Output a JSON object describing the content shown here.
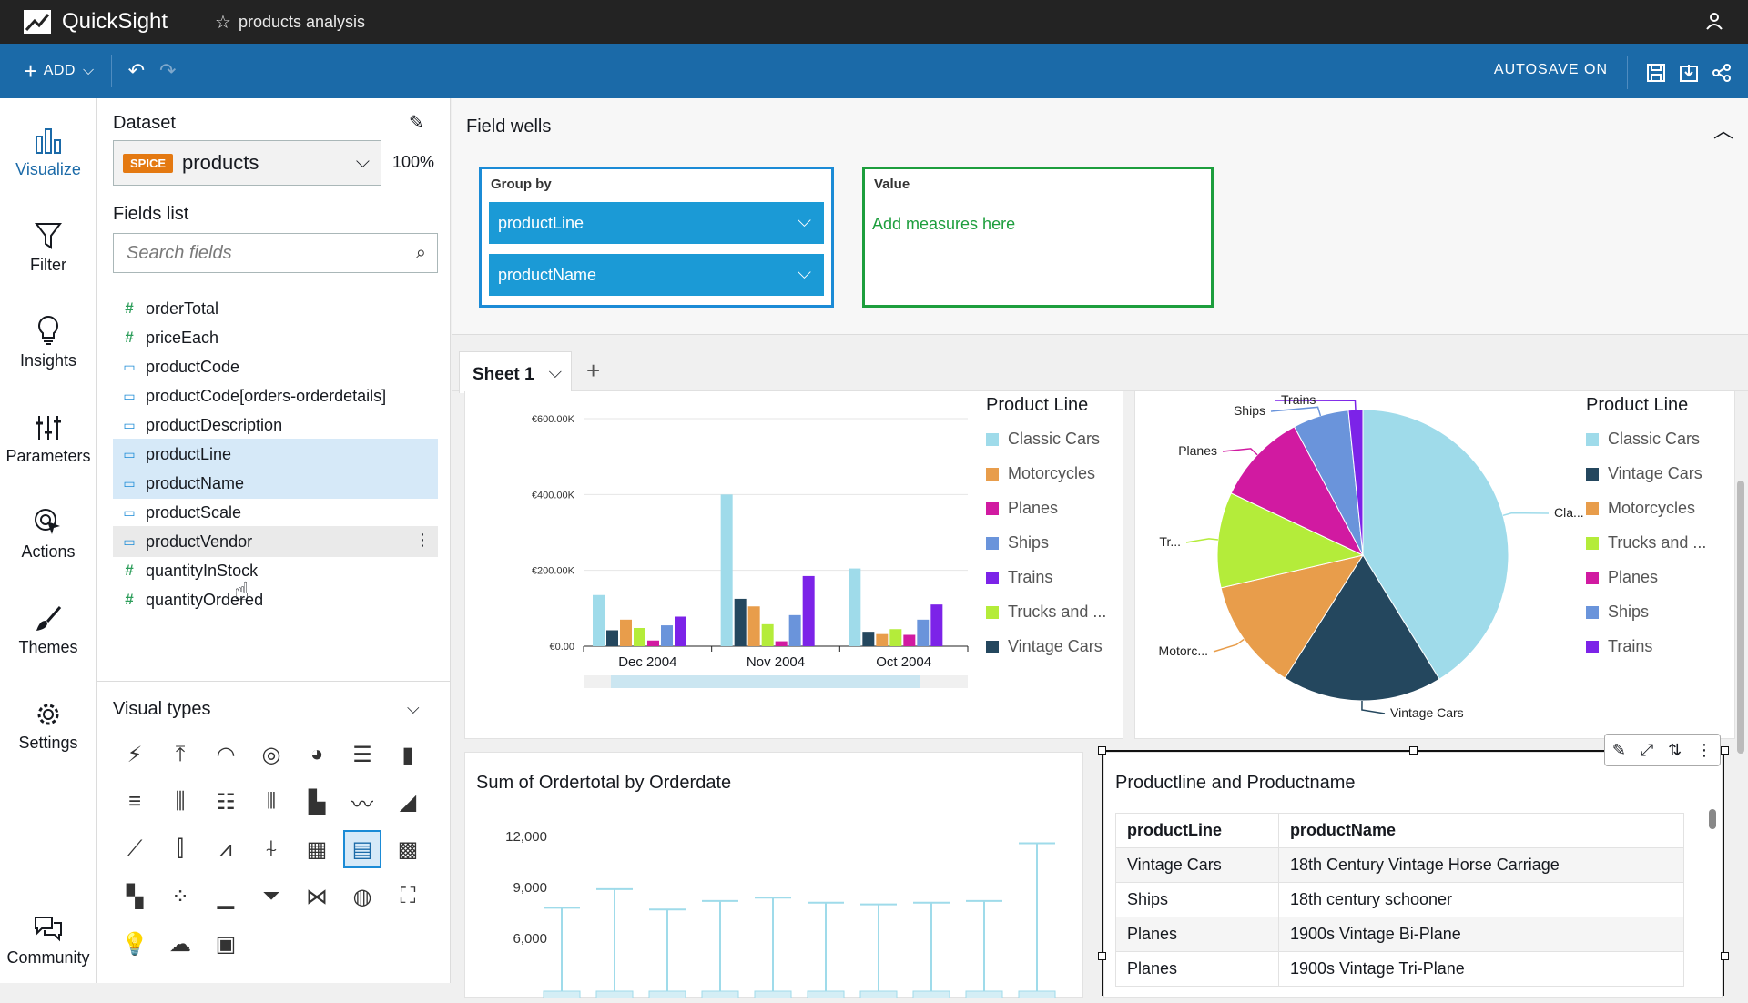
{
  "app": {
    "name": "QuickSight",
    "analysis_title": "products analysis"
  },
  "toolbar": {
    "add_label": "ADD",
    "autosave_label": "AUTOSAVE ON"
  },
  "nav": [
    {
      "label": "Visualize",
      "icon": "bar-chart-icon"
    },
    {
      "label": "Filter",
      "icon": "filter-icon"
    },
    {
      "label": "Insights",
      "icon": "lightbulb-icon"
    },
    {
      "label": "Parameters",
      "icon": "sliders-icon"
    },
    {
      "label": "Actions",
      "icon": "cursor-click-icon"
    },
    {
      "label": "Themes",
      "icon": "brush-icon"
    },
    {
      "label": "Settings",
      "icon": "gear-icon"
    },
    {
      "label": "Community",
      "icon": "chat-icon"
    }
  ],
  "dataset": {
    "label": "Dataset",
    "badge": "SPICE",
    "name": "products",
    "spice_percent": "100%"
  },
  "fields": {
    "label": "Fields list",
    "search_placeholder": "Search fields",
    "items": [
      {
        "name": "orderTotal",
        "type": "#"
      },
      {
        "name": "priceEach",
        "type": "#"
      },
      {
        "name": "productCode",
        "type": "▭"
      },
      {
        "name": "productCode[orders-orderdetails]",
        "type": "▭"
      },
      {
        "name": "productDescription",
        "type": "▭"
      },
      {
        "name": "productLine",
        "type": "▭"
      },
      {
        "name": "productName",
        "type": "▭"
      },
      {
        "name": "productScale",
        "type": "▭"
      },
      {
        "name": "productVendor",
        "type": "▭"
      },
      {
        "name": "quantityInStock",
        "type": "#"
      },
      {
        "name": "quantityOrdered",
        "type": "#"
      }
    ]
  },
  "visual_types": {
    "label": "Visual types"
  },
  "field_wells": {
    "title": "Field wells",
    "group_by": {
      "label": "Group by",
      "items": [
        "productLine",
        "productName"
      ]
    },
    "value": {
      "label": "Value",
      "placeholder": "Add measures here"
    }
  },
  "sheets": {
    "active": "Sheet 1"
  },
  "colors": {
    "Classic Cars": "#9fdbea",
    "Motorcycles": "#e89d4b",
    "Planes": "#d11aa1",
    "Ships": "#6a94db",
    "Trains": "#7c23e8",
    "Trucks and Buses": "#b4ec3a",
    "Vintage Cars": "#24475e"
  },
  "chart_data": [
    {
      "type": "bar",
      "title": "",
      "legend_title": "Product Line",
      "categories": [
        "Dec 2004",
        "Nov 2004",
        "Oct 2004"
      ],
      "y_ticks": [
        "€600.00K",
        "€400.00K",
        "€200.00K",
        "€0.00"
      ],
      "ylim": [
        0,
        600000
      ],
      "series": [
        {
          "name": "Classic Cars",
          "values": [
            135000,
            400000,
            205000
          ]
        },
        {
          "name": "Vintage Cars",
          "values": [
            42000,
            125000,
            38000
          ]
        },
        {
          "name": "Motorcycles",
          "values": [
            70000,
            105000,
            32000
          ]
        },
        {
          "name": "Trucks and Buses",
          "values": [
            48000,
            58000,
            45000
          ]
        },
        {
          "name": "Planes",
          "values": [
            15000,
            13000,
            30000
          ]
        },
        {
          "name": "Ships",
          "values": [
            55000,
            82000,
            70000
          ]
        },
        {
          "name": "Trains",
          "values": [
            78000,
            185000,
            110000
          ]
        }
      ],
      "legend_labels": [
        "Classic Cars",
        "Motorcycles",
        "Planes",
        "Ships",
        "Trains",
        "Trucks and ...",
        "Vintage Cars"
      ]
    },
    {
      "type": "pie",
      "legend_title": "Product Line",
      "slices": [
        {
          "name": "Classic Cars",
          "value": 41.2,
          "label": "Cla..."
        },
        {
          "name": "Vintage Cars",
          "value": 17.8,
          "label": "Vintage Cars"
        },
        {
          "name": "Motorcycles",
          "value": 12.4,
          "label": "Motorc..."
        },
        {
          "name": "Trucks and Buses",
          "value": 10.6,
          "label": "Tr..."
        },
        {
          "name": "Planes",
          "value": 10.2,
          "label": "Planes"
        },
        {
          "name": "Ships",
          "value": 6.2,
          "label": "Ships"
        },
        {
          "name": "Trains",
          "value": 1.6,
          "label": "Trains"
        }
      ],
      "legend_labels": [
        "Classic Cars",
        "Vintage Cars",
        "Motorcycles",
        "Trucks and ...",
        "Planes",
        "Ships",
        "Trains"
      ]
    },
    {
      "type": "box",
      "title": "Sum of Ordertotal by Orderdate",
      "y_ticks": [
        "12,000",
        "9,000",
        "6,000"
      ],
      "upper_whiskers": [
        7800,
        8900,
        7700,
        8200,
        8400,
        8100,
        8000,
        8100,
        8200,
        11600
      ]
    },
    {
      "type": "table",
      "title": "Productline and Productname",
      "columns": [
        "productLine",
        "productName"
      ],
      "rows": [
        [
          "Vintage Cars",
          "18th Century Vintage Horse Carriage"
        ],
        [
          "Ships",
          "18th century schooner"
        ],
        [
          "Planes",
          "1900s Vintage Bi-Plane"
        ],
        [
          "Planes",
          "1900s Vintage Tri-Plane"
        ]
      ]
    }
  ]
}
